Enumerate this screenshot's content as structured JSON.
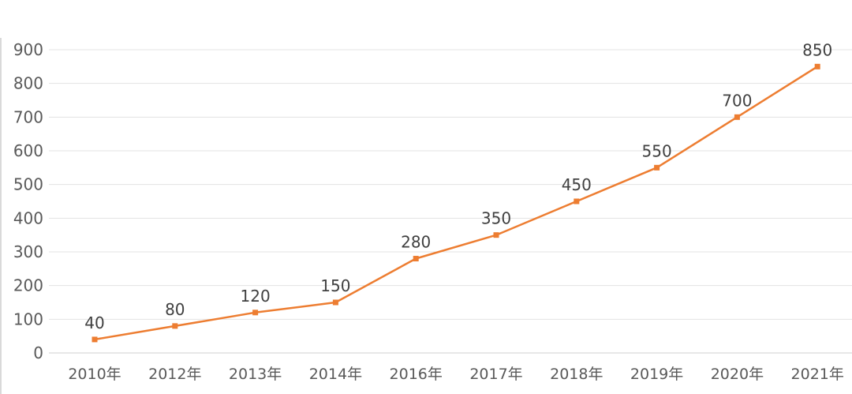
{
  "chart_data": {
    "type": "line",
    "title": "",
    "xlabel": "",
    "ylabel": "",
    "categories": [
      "2010年",
      "2012年",
      "2013年",
      "2014年",
      "2016年",
      "2017年",
      "2018年",
      "2019年",
      "2020年",
      "2021年"
    ],
    "series": [
      {
        "values": [
          40,
          80,
          120,
          150,
          280,
          350,
          450,
          550,
          700,
          850
        ],
        "color": "#ED7D31"
      }
    ],
    "ylim": [
      0,
      900
    ],
    "yticks": [
      0,
      100,
      200,
      300,
      400,
      500,
      600,
      700,
      800,
      900
    ],
    "grid": true,
    "legend": "none",
    "data_labels": true,
    "marker": "square"
  }
}
